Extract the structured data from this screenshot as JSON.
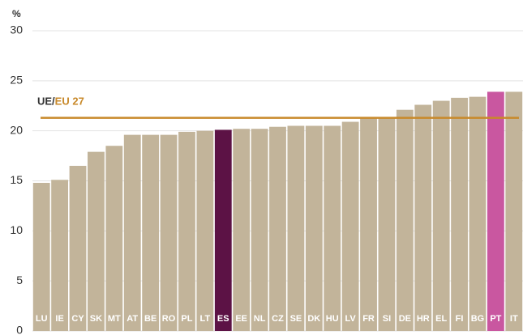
{
  "chart_data": {
    "type": "bar",
    "y_unit": "%",
    "categories": [
      "LU",
      "IE",
      "CY",
      "SK",
      "MT",
      "AT",
      "BE",
      "RO",
      "PL",
      "LT",
      "ES",
      "EE",
      "NL",
      "CZ",
      "SE",
      "DK",
      "HU",
      "LV",
      "FR",
      "SI",
      "DE",
      "HR",
      "EL",
      "FI",
      "BG",
      "PT",
      "IT"
    ],
    "values": [
      14.8,
      15.1,
      16.5,
      17.9,
      18.5,
      19.6,
      19.6,
      19.6,
      19.9,
      20.0,
      20.1,
      20.2,
      20.2,
      20.4,
      20.5,
      20.5,
      20.5,
      20.9,
      21.3,
      21.3,
      22.1,
      22.6,
      23.0,
      23.3,
      23.4,
      23.9,
      23.9
    ],
    "color": "#c2b49a",
    "highlight_colors": {
      "ES": "#5c1245",
      "PT": "#c957a0"
    },
    "ylim": [
      0,
      30
    ],
    "yticks": [
      0,
      5,
      10,
      15,
      20,
      25,
      30
    ],
    "grid": true,
    "reference_line": {
      "value": 21.3,
      "label_prefix": "UE/",
      "label": "EU 27",
      "color": "#c8892a"
    }
  }
}
